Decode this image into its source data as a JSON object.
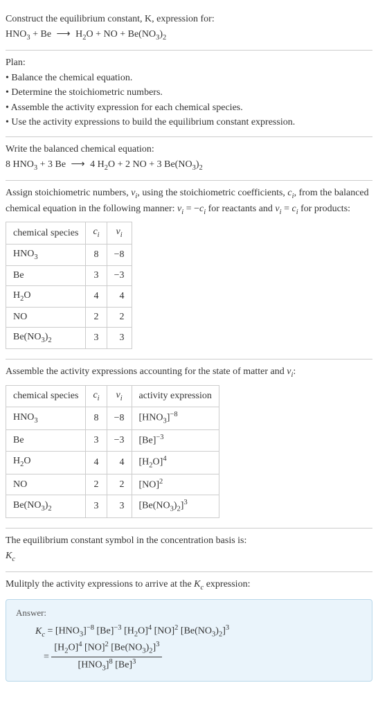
{
  "intro": {
    "heading": "Construct the equilibrium constant, K, expression for:",
    "equation_html": "HNO<sub>3</sub> + Be <span class='arrow'>⟶</span> H<sub>2</sub>O + NO + Be(NO<sub>3</sub>)<sub>2</sub>"
  },
  "plan": {
    "heading": "Plan:",
    "items": [
      "• Balance the chemical equation.",
      "• Determine the stoichiometric numbers.",
      "• Assemble the activity expression for each chemical species.",
      "• Use the activity expressions to build the equilibrium constant expression."
    ]
  },
  "balanced": {
    "heading": "Write the balanced chemical equation:",
    "equation_html": "8 HNO<sub>3</sub> + 3 Be <span class='arrow'>⟶</span> 4 H<sub>2</sub>O + 2 NO + 3 Be(NO<sub>3</sub>)<sub>2</sub>"
  },
  "stoich": {
    "heading_html": "Assign stoichiometric numbers, <span class='ital'>ν<sub>i</sub></span>, using the stoichiometric coefficients, <span class='ital'>c<sub>i</sub></span>, from the balanced chemical equation in the following manner: <span class='ital'>ν<sub>i</sub></span> = −<span class='ital'>c<sub>i</sub></span> for reactants and <span class='ital'>ν<sub>i</sub></span> = <span class='ital'>c<sub>i</sub></span> for products:",
    "columns": [
      "chemical species",
      "c_i",
      "ν_i"
    ],
    "col_html": [
      "chemical species",
      "<span class='ital'>c<sub>i</sub></span>",
      "<span class='ital'>ν<sub>i</sub></span>"
    ],
    "rows": [
      {
        "species_html": "HNO<sub>3</sub>",
        "c": "8",
        "v": "−8"
      },
      {
        "species_html": "Be",
        "c": "3",
        "v": "−3"
      },
      {
        "species_html": "H<sub>2</sub>O",
        "c": "4",
        "v": "4"
      },
      {
        "species_html": "NO",
        "c": "2",
        "v": "2"
      },
      {
        "species_html": "Be(NO<sub>3</sub>)<sub>2</sub>",
        "c": "3",
        "v": "3"
      }
    ]
  },
  "activity": {
    "heading_html": "Assemble the activity expressions accounting for the state of matter and <span class='ital'>ν<sub>i</sub></span>:",
    "col_html": [
      "chemical species",
      "<span class='ital'>c<sub>i</sub></span>",
      "<span class='ital'>ν<sub>i</sub></span>",
      "activity expression"
    ],
    "rows": [
      {
        "species_html": "HNO<sub>3</sub>",
        "c": "8",
        "v": "−8",
        "expr_html": "[HNO<sub>3</sub>]<sup>−8</sup>"
      },
      {
        "species_html": "Be",
        "c": "3",
        "v": "−3",
        "expr_html": "[Be]<sup>−3</sup>"
      },
      {
        "species_html": "H<sub>2</sub>O",
        "c": "4",
        "v": "4",
        "expr_html": "[H<sub>2</sub>O]<sup>4</sup>"
      },
      {
        "species_html": "NO",
        "c": "2",
        "v": "2",
        "expr_html": "[NO]<sup>2</sup>"
      },
      {
        "species_html": "Be(NO<sub>3</sub>)<sub>2</sub>",
        "c": "3",
        "v": "3",
        "expr_html": "[Be(NO<sub>3</sub>)<sub>2</sub>]<sup>3</sup>"
      }
    ]
  },
  "symbol": {
    "heading": "The equilibrium constant symbol in the concentration basis is:",
    "value_html": "<span class='ital'>K<sub>c</sub></span>"
  },
  "multiply": {
    "heading_html": "Mulitply the activity expressions to arrive at the <span class='ital'>K<sub>c</sub></span> expression:"
  },
  "answer": {
    "label": "Answer:",
    "line1_html": "<span class='ital'>K<sub>c</sub></span> = [HNO<sub>3</sub>]<sup>−8</sup> [Be]<sup>−3</sup> [H<sub>2</sub>O]<sup>4</sup> [NO]<sup>2</sup> [Be(NO<sub>3</sub>)<sub>2</sub>]<sup>3</sup>",
    "frac_num_html": "[H<sub>2</sub>O]<sup>4</sup> [NO]<sup>2</sup> [Be(NO<sub>3</sub>)<sub>2</sub>]<sup>3</sup>",
    "frac_den_html": "[HNO<sub>3</sub>]<sup>8</sup> [Be]<sup>3</sup>"
  },
  "colors": {
    "answer_bg": "#eaf4fb",
    "answer_border": "#b7d7ea",
    "rule": "#cccccc"
  }
}
